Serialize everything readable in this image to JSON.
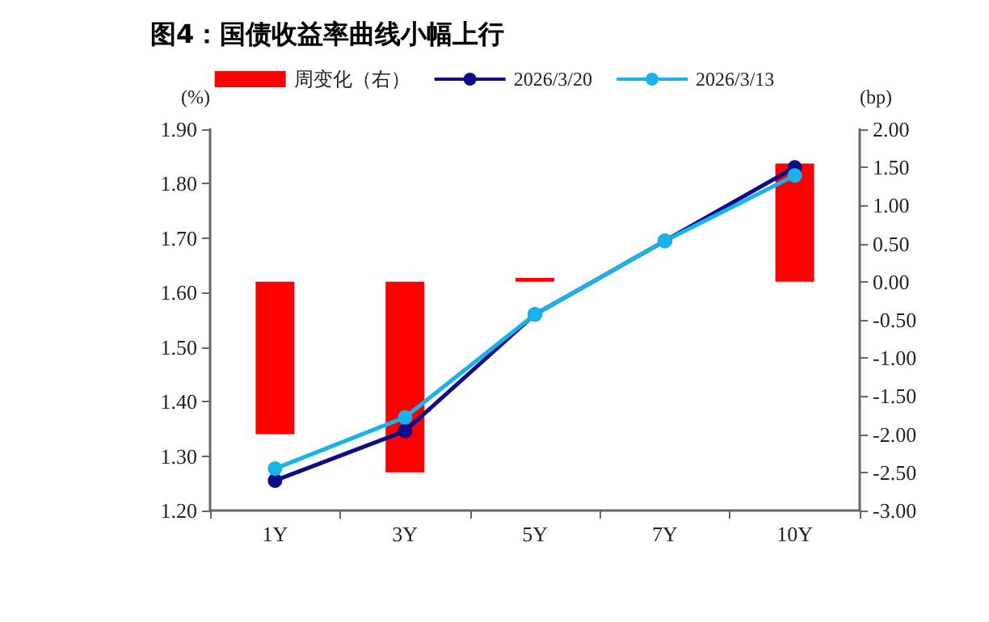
{
  "chart_data": {
    "type": "line",
    "title": "图4：国债收益率曲线小幅上行",
    "ylabel": "(%)",
    "y2label": "(bp)",
    "categories": [
      "1Y",
      "3Y",
      "5Y",
      "7Y",
      "10Y"
    ],
    "series": [
      {
        "name": "周变化（右）",
        "type": "bar",
        "axis": "y2",
        "color": "#ff0000",
        "values": [
          -2.0,
          -2.5,
          0.05,
          0.0,
          1.55
        ]
      },
      {
        "name": "2026/3/20",
        "color": "#0d0d8a",
        "values": [
          1.255,
          1.346,
          1.56,
          1.695,
          1.83
        ]
      },
      {
        "name": "2026/3/13",
        "color": "#1ab2ea",
        "values": [
          1.277,
          1.371,
          1.56,
          1.695,
          1.815
        ]
      }
    ],
    "ylim": [
      1.2,
      1.9
    ],
    "yticks": [
      {
        "value": 1.2,
        "label": "1.20"
      },
      {
        "value": 1.3,
        "label": "1.30"
      },
      {
        "value": 1.4,
        "label": "1.40"
      },
      {
        "value": 1.5,
        "label": "1.50"
      },
      {
        "value": 1.6,
        "label": "1.60"
      },
      {
        "value": 1.7,
        "label": "1.70"
      },
      {
        "value": 1.8,
        "label": "1.80"
      },
      {
        "value": 1.9,
        "label": "1.90"
      }
    ],
    "y2lim": [
      -3,
      2
    ],
    "y2ticks": [
      {
        "value": -3,
        "label": "-3.00"
      },
      {
        "value": -2.5,
        "label": "-2.50"
      },
      {
        "value": -2,
        "label": "-2.00"
      },
      {
        "value": -1.5,
        "label": "-1.50"
      },
      {
        "value": -1,
        "label": "-1.00"
      },
      {
        "value": -0.5,
        "label": "-0.50"
      },
      {
        "value": 0,
        "label": "0.00"
      },
      {
        "value": 0.5,
        "label": "0.50"
      },
      {
        "value": 1,
        "label": "1.00"
      },
      {
        "value": 1.5,
        "label": "1.50"
      },
      {
        "value": 2,
        "label": "2.00"
      }
    ],
    "grid": false,
    "legend": "top",
    "marker": "circle",
    "line_style": "solid"
  }
}
